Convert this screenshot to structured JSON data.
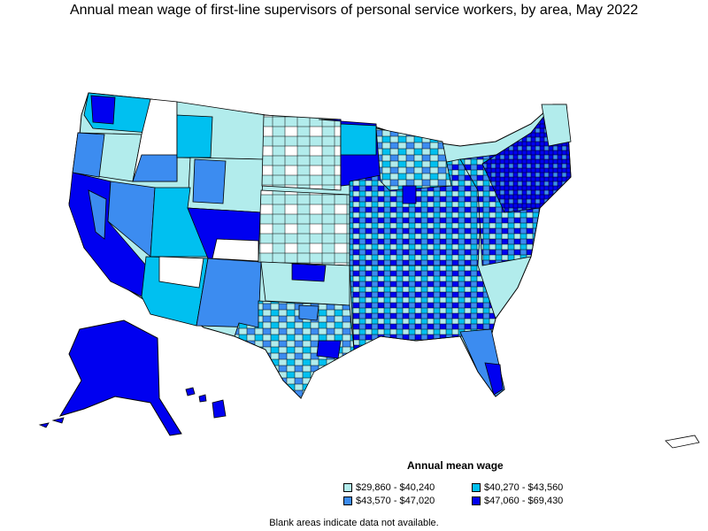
{
  "title": "Annual mean wage of first-line supervisors of personal service workers, by area, May 2022",
  "legend": {
    "title": "Annual mean wage",
    "bins": [
      {
        "label": "$29,860 - $40,240",
        "color": "#b2ecec"
      },
      {
        "label": "$40,270 - $43,560",
        "color": "#00c0f0"
      },
      {
        "label": "$43,570 - $47,020",
        "color": "#3c8cf0"
      },
      {
        "label": "$47,060 - $69,430",
        "color": "#0000f0"
      }
    ]
  },
  "note": "Blank areas indicate data not available.",
  "colors": {
    "no_data": "#ffffff",
    "border": "#000000"
  }
}
